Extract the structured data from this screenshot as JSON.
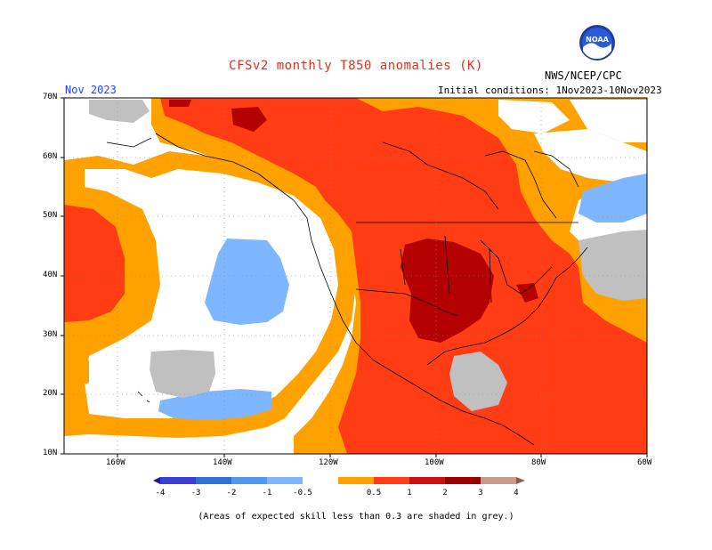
{
  "header": {
    "title": "CFSv2 monthly T850 anomalies (K)",
    "agency": "NWS/NCEP/CPC",
    "logo_text": "NOAA",
    "month": "Nov 2023",
    "initial_conditions": "Initial conditions: 1Nov2023-10Nov2023"
  },
  "axes": {
    "lat_labels": [
      "70N",
      "60N",
      "50N",
      "40N",
      "30N",
      "20N",
      "10N"
    ],
    "lon_labels": [
      "160W",
      "140W",
      "120W",
      "100W",
      "80W",
      "60W"
    ]
  },
  "legend": {
    "labels": [
      "-4",
      "-3",
      "-2",
      "-1",
      "-0.5",
      "0.5",
      "1",
      "2",
      "3",
      "4"
    ],
    "colors": [
      "#2a1494",
      "#3b3fd6",
      "#2f6fd8",
      "#4f9af0",
      "#7eb7ff",
      "#ffffff",
      "#ffa200",
      "#ff3c14",
      "#cc1010",
      "#9c0000",
      "#c89a8a",
      "#8c5a4a"
    ],
    "grey_color": "#c0c0c0"
  },
  "footnote": "(Areas of expected skill less than 0.3 are shaded in grey.)",
  "map_colors": {
    "orange": "#ffa200",
    "red": "#ff3c14",
    "dark_red": "#b40000",
    "blue": "#7eb7ff",
    "grey": "#c0c0c0",
    "white": "#ffffff"
  }
}
